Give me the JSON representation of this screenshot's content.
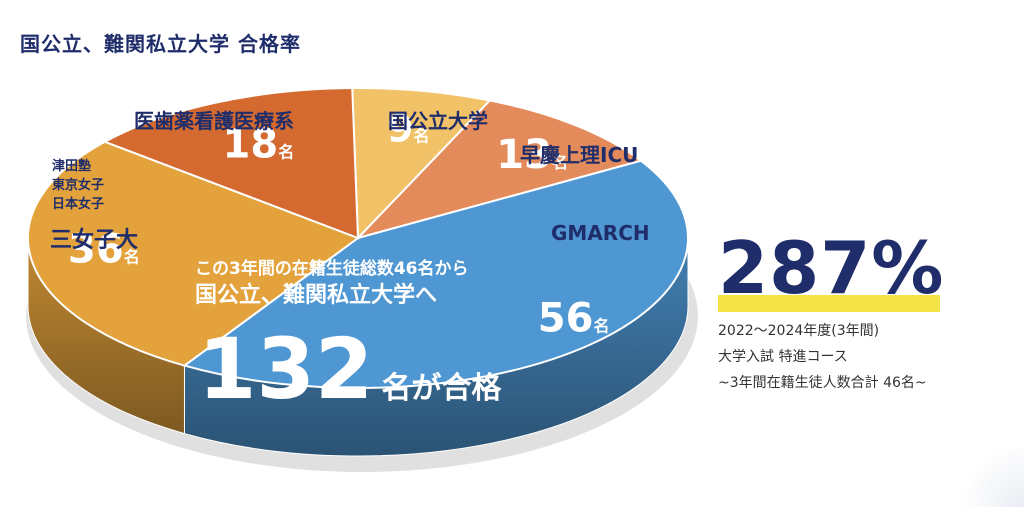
{
  "title": "国公立、難関私立大学 合格率",
  "chart_data": {
    "type": "pie",
    "title": "国公立、難関私立大学 合格率",
    "unit": "名",
    "slices": [
      {
        "label": "国公立大学",
        "value": 9,
        "color": "#f2c268"
      },
      {
        "label": "早慶上理ICU",
        "value": 13,
        "color": "#e48b5c"
      },
      {
        "label": "GMARCH",
        "value": 56,
        "color": "#4f97d3"
      },
      {
        "label": "三女子大",
        "sublabels": [
          "津田塾",
          "東京女子",
          "日本女子"
        ],
        "value": 36,
        "color": "#e4a23c"
      },
      {
        "label": "医歯薬看護医療系",
        "value": 18,
        "color": "#d46a30"
      }
    ]
  },
  "overlay": {
    "line1": "この3年間の在籍生徒総数46名から",
    "line2": "国公立、難関私立大学へ",
    "total_number": "132",
    "total_suffix": "名が合格"
  },
  "stats": {
    "rate": "287%",
    "accent_color": "#f3e346",
    "note1": "2022～2024年度(3年間)",
    "note2": "大学入試 特進コース",
    "note3": "~3年間在籍生徒人数合計 46名~"
  }
}
